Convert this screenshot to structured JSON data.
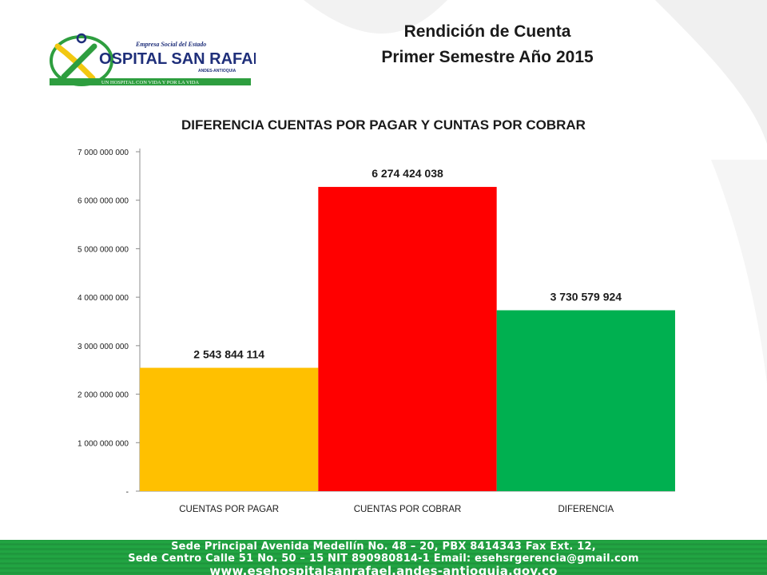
{
  "header": {
    "line1": "Rendición de Cuenta",
    "line2": "Primer Semestre  Año  2015"
  },
  "logo": {
    "top_text": "Empresa Social del Estado",
    "name": "OSPITAL SAN RAFAEL",
    "location": "ANDES-ANTIOQUIA",
    "slogan": "UN HOSPITAL CON VIDA Y POR LA VIDA",
    "colors": {
      "green": "#2e9e3f",
      "yellow": "#f2c811",
      "navy": "#1f2f7a"
    }
  },
  "chart_data": {
    "type": "bar",
    "title": "DIFERENCIA CUENTAS POR PAGAR Y CUNTAS POR COBRAR",
    "categories": [
      "CUENTAS POR PAGAR",
      "CUENTAS POR COBRAR",
      "DIFERENCIA"
    ],
    "values": [
      2543844114,
      6274424038,
      3730579924
    ],
    "data_labels": [
      "2 543 844 114",
      "6 274 424 038",
      "3 730 579 924"
    ],
    "colors": [
      "#ffc000",
      "#ff0000",
      "#00b050"
    ],
    "ylim": [
      0,
      7000000000
    ],
    "yticks": [
      0,
      1000000000,
      2000000000,
      3000000000,
      4000000000,
      5000000000,
      6000000000,
      7000000000
    ],
    "ytick_labels": [
      "-",
      "1 000 000 000",
      "2 000 000 000",
      "3 000 000 000",
      "4 000 000 000",
      "5 000 000 000",
      "6 000 000 000",
      "7 000 000 000"
    ],
    "xlabel": "",
    "ylabel": "",
    "grid": false,
    "legend": "none"
  },
  "footer": {
    "line1": "Sede Principal Avenida Medellín No. 48 – 20, PBX 8414343 Fax Ext. 12,",
    "line2": "Sede Centro Calle 51 No. 50 – 15 NIT 890980814-1 Email: esehsrgerencia@gmail.com",
    "line3": "www.esehospitalsanrafael.andes-antioquia.gov.co",
    "color": "#22a844"
  }
}
